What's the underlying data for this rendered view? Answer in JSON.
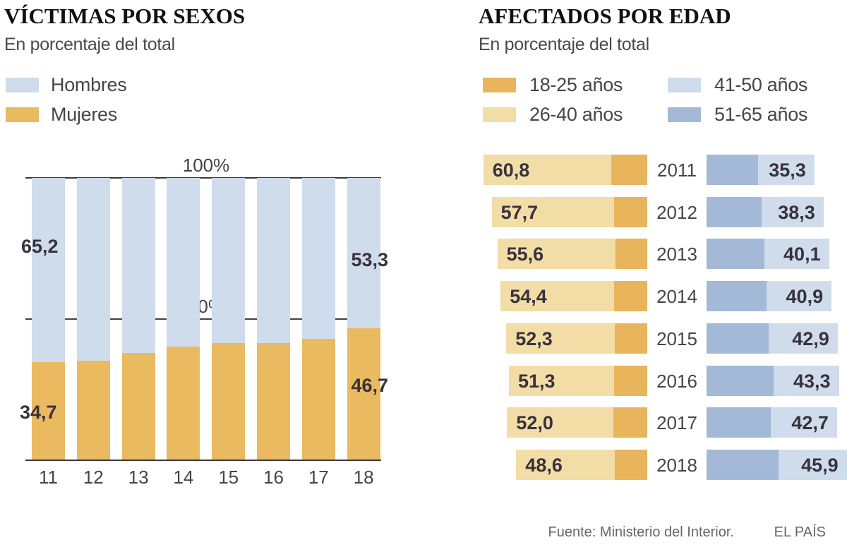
{
  "colors": {
    "men_light_blue": "#cfdcec",
    "women_orange": "#eaba60",
    "age_18_25_orange": "#e9b55c",
    "age_26_40_tan": "#f2dda6",
    "age_41_50_light_blue": "#cfdcec",
    "age_51_65_blue": "#a3b9d7",
    "axis_line": "#3e383e",
    "number_text": "#38323d"
  },
  "footer": {
    "source": "Fuente: Ministerio del Interior.",
    "credit": "EL PAÍS"
  },
  "chart_data": [
    {
      "type": "bar",
      "orientation": "vertical",
      "stacked": true,
      "title": "VÍCTIMAS POR SEXOS",
      "subtitle": "En porcentaje del total",
      "ylim": [
        0,
        100
      ],
      "grid": "two reference lines",
      "gridlines": [
        {
          "label": "100%",
          "value": 100
        },
        {
          "label": "50%",
          "value": 50
        }
      ],
      "legend_position": "top-left",
      "categories": [
        "11",
        "12",
        "13",
        "14",
        "15",
        "16",
        "17",
        "18"
      ],
      "series": [
        {
          "name": "Hombres",
          "color": "#cfdcec",
          "values": [
            65.2,
            64.8,
            62.2,
            59.8,
            58.6,
            58.7,
            57.1,
            53.3
          ]
        },
        {
          "name": "Mujeres",
          "color": "#eaba60",
          "values": [
            34.7,
            35.2,
            37.8,
            40.2,
            41.4,
            41.3,
            42.9,
            46.7
          ]
        }
      ],
      "value_labels_shown": [
        {
          "text": "65,2",
          "series": "Hombres",
          "category": "11"
        },
        {
          "text": "34,7",
          "series": "Mujeres",
          "category": "11"
        },
        {
          "text": "53,3",
          "series": "Hombres",
          "category": "18"
        },
        {
          "text": "46,7",
          "series": "Mujeres",
          "category": "18"
        }
      ]
    },
    {
      "type": "bar",
      "orientation": "horizontal",
      "stacked": true,
      "title": "AFECTADOS POR EDAD",
      "subtitle": "En porcentaje del total",
      "legend_position": "top",
      "legend": [
        {
          "label": "18-25 años",
          "color": "#e9b55c"
        },
        {
          "label": "26-40 años",
          "color": "#f2dda6"
        },
        {
          "label": "41-50 años",
          "color": "#cfdcec"
        },
        {
          "label": "51-65 años",
          "color": "#a3b9d7"
        }
      ],
      "note": "left bars grow right-to-left (young ages), right bars grow left-to-right (older ages); only stack totals are labelled",
      "rows": [
        {
          "year": "2011",
          "young_label": "60,8",
          "young_total": 60.8,
          "age_18_25": 13.4,
          "age_26_40": 47.4,
          "old_label": "35,3",
          "old_total": 35.3,
          "age_51_65": 16.8,
          "age_41_50": 18.5
        },
        {
          "year": "2012",
          "young_label": "57,7",
          "young_total": 57.7,
          "age_18_25": 12.3,
          "age_26_40": 45.4,
          "old_label": "38,3",
          "old_total": 38.3,
          "age_51_65": 17.9,
          "age_41_50": 20.4
        },
        {
          "year": "2013",
          "young_label": "55,6",
          "young_total": 55.6,
          "age_18_25": 11.7,
          "age_26_40": 43.9,
          "old_label": "40,1",
          "old_total": 40.1,
          "age_51_65": 19.0,
          "age_41_50": 21.1
        },
        {
          "year": "2014",
          "young_label": "54,4",
          "young_total": 54.4,
          "age_18_25": 12.3,
          "age_26_40": 42.1,
          "old_label": "40,9",
          "old_total": 40.9,
          "age_51_65": 19.6,
          "age_41_50": 21.3
        },
        {
          "year": "2015",
          "young_label": "52,3",
          "young_total": 52.3,
          "age_18_25": 11.9,
          "age_26_40": 40.4,
          "old_label": "42,9",
          "old_total": 42.9,
          "age_51_65": 20.4,
          "age_41_50": 22.5
        },
        {
          "year": "2016",
          "young_label": "51,3",
          "young_total": 51.3,
          "age_18_25": 12.4,
          "age_26_40": 38.9,
          "old_label": "43,3",
          "old_total": 43.3,
          "age_51_65": 21.9,
          "age_41_50": 21.4
        },
        {
          "year": "2017",
          "young_label": "52,0",
          "young_total": 52.0,
          "age_18_25": 12.6,
          "age_26_40": 39.4,
          "old_label": "42,7",
          "old_total": 42.7,
          "age_51_65": 20.9,
          "age_41_50": 21.8
        },
        {
          "year": "2018",
          "young_label": "48,6",
          "young_total": 48.6,
          "age_18_25": 11.9,
          "age_26_40": 36.7,
          "old_label": "45,9",
          "old_total": 45.9,
          "age_51_65": 23.5,
          "age_41_50": 22.4
        }
      ]
    }
  ]
}
